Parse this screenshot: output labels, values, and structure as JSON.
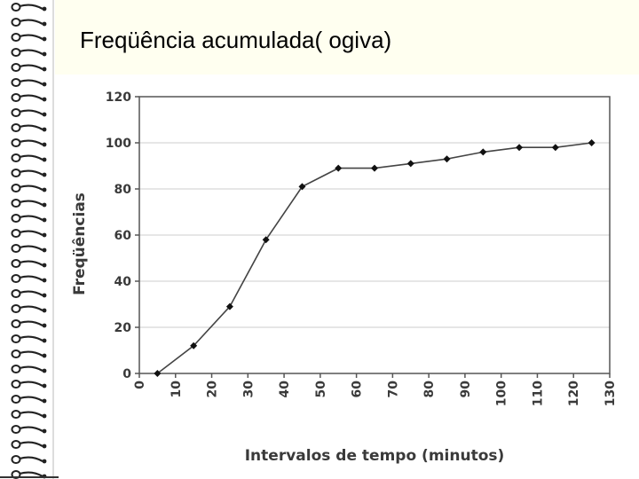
{
  "slide": {
    "title": "Freqüência acumulada( ogiva)"
  },
  "colors": {
    "title_band": "#fffff0",
    "axis": "#555555",
    "grid": "#cccccc",
    "line": "#444444",
    "marker": "#111111",
    "spiral": "#222222"
  },
  "chart_data": {
    "type": "line",
    "title": "",
    "xlabel": "Intervalos de tempo (minutos)",
    "ylabel": "Freqüências",
    "xlim": [
      0,
      130
    ],
    "ylim": [
      0,
      120
    ],
    "x_ticks": [
      0,
      10,
      20,
      30,
      40,
      50,
      60,
      70,
      80,
      90,
      100,
      110,
      120,
      130
    ],
    "y_ticks": [
      0,
      20,
      40,
      60,
      80,
      100,
      120
    ],
    "grid": true,
    "x": [
      5,
      15,
      25,
      35,
      45,
      55,
      65,
      75,
      85,
      95,
      105,
      115,
      125
    ],
    "series": [
      {
        "values": [
          0,
          12,
          29,
          58,
          81,
          89,
          89,
          91,
          93,
          96,
          98,
          98,
          100
        ]
      }
    ]
  }
}
